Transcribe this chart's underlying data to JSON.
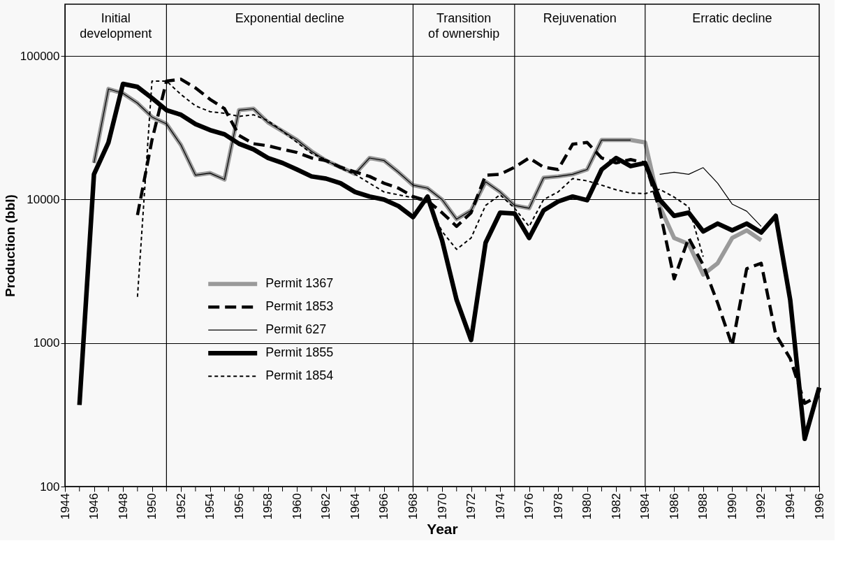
{
  "chart_data": {
    "type": "line",
    "xlabel": "Year",
    "ylabel": "Production (bbl)",
    "log": "y",
    "grid": "y",
    "legend": "bottom left",
    "x": [
      1945,
      1946,
      1947,
      1948,
      1949,
      1950,
      1951,
      1952,
      1953,
      1954,
      1955,
      1956,
      1957,
      1958,
      1959,
      1960,
      1961,
      1962,
      1963,
      1964,
      1965,
      1966,
      1967,
      1968,
      1969,
      1970,
      1971,
      1972,
      1973,
      1974,
      1975,
      1976,
      1977,
      1978,
      1979,
      1980,
      1981,
      1982,
      1983,
      1984,
      1985,
      1986,
      1987,
      1988,
      1989,
      1990,
      1991,
      1992,
      1993,
      1994,
      1995,
      1996
    ],
    "xlim": [
      1944,
      1996
    ],
    "xticks": [
      1944,
      {
        "value": 1945,
        "label": null
      },
      1946,
      {
        "value": 1947,
        "label": null
      },
      1948,
      {
        "value": 1949,
        "label": null
      },
      1950,
      {
        "value": 1951,
        "label": null
      },
      1952,
      {
        "value": 1953,
        "label": null
      },
      1954,
      {
        "value": 1955,
        "label": null
      },
      1956,
      {
        "value": 1957,
        "label": null
      },
      1958,
      {
        "value": 1959,
        "label": null
      },
      1960,
      {
        "value": 1961,
        "label": null
      },
      1962,
      {
        "value": 1963,
        "label": null
      },
      1964,
      {
        "value": 1965,
        "label": null
      },
      1966,
      {
        "value": 1967,
        "label": null
      },
      1968,
      {
        "value": 1969,
        "label": null
      },
      1970,
      {
        "value": 1971,
        "label": null
      },
      1972,
      {
        "value": 1973,
        "label": null
      },
      1974,
      {
        "value": 1975,
        "label": null
      },
      1976,
      {
        "value": 1977,
        "label": null
      },
      1978,
      {
        "value": 1979,
        "label": null
      },
      1980,
      {
        "value": 1981,
        "label": null
      },
      1982,
      {
        "value": 1983,
        "label": null
      },
      1984,
      {
        "value": 1985,
        "label": null
      },
      1986,
      {
        "value": 1987,
        "label": null
      },
      1988,
      {
        "value": 1989,
        "label": null
      },
      1990,
      {
        "value": 1991,
        "label": null
      },
      1992,
      {
        "value": 1993,
        "label": null
      },
      1994,
      {
        "value": 1995,
        "label": null
      },
      1996
    ],
    "ylim": [
      100,
      230000
    ],
    "yticks": [
      100,
      1000,
      10000,
      100000
    ],
    "ref_lines": [
      {
        "axis": "x",
        "value": 1951
      },
      {
        "axis": "x",
        "value": 1968
      },
      {
        "axis": "x",
        "value": 1975
      },
      {
        "axis": "x",
        "value": 1984
      }
    ],
    "annotations": [
      "Initial development",
      "Exponential decline",
      "Transition of ownership",
      "Rejuvenation",
      "Erratic decline"
    ],
    "series": [
      {
        "name": "Permit 1367",
        "color": "#9a9a9a",
        "line_style": "solid",
        "values": [
          null,
          18000,
          59000,
          55000,
          47000,
          37600,
          33700,
          24000,
          14800,
          15300,
          13800,
          42000,
          43000,
          34500,
          30000,
          26000,
          21700,
          18700,
          16800,
          15100,
          19500,
          18700,
          15500,
          12600,
          12000,
          10000,
          7300,
          8400,
          13300,
          11300,
          9100,
          8700,
          14200,
          14500,
          15000,
          16200,
          26000,
          26000,
          26000,
          25000,
          9000,
          5400,
          4900,
          3000,
          3600,
          5400,
          6100,
          5200,
          null,
          null,
          null,
          null
        ]
      },
      {
        "name": "Permit 1853",
        "color": "#000000",
        "line_style": "dashed",
        "values": [
          null,
          null,
          null,
          null,
          7800,
          26000,
          67000,
          69000,
          60000,
          50000,
          43000,
          28000,
          24500,
          23700,
          22400,
          21300,
          19500,
          18700,
          16800,
          15600,
          14500,
          13000,
          12000,
          10500,
          9800,
          8100,
          6500,
          8100,
          14800,
          15000,
          16800,
          19500,
          16800,
          16200,
          24300,
          25000,
          19500,
          18000,
          19000,
          18000,
          8500,
          2800,
          5400,
          3500,
          1900,
          960,
          3300,
          3600,
          1150,
          780,
          380,
          430
        ]
      },
      {
        "name": "Permit 627",
        "color": "#000000",
        "line_style": "solid",
        "values": [
          null,
          18000,
          59000,
          55000,
          47000,
          37600,
          33700,
          24000,
          14800,
          15300,
          13800,
          42000,
          43000,
          34500,
          30000,
          26000,
          21700,
          18700,
          16800,
          15100,
          19500,
          18700,
          15500,
          12600,
          12000,
          10000,
          7300,
          8400,
          13300,
          11300,
          9100,
          8700,
          14200,
          14500,
          15000,
          16200,
          26000,
          26000,
          26000,
          null,
          15000,
          15500,
          15000,
          16700,
          13000,
          9300,
          8300,
          6500,
          null,
          null,
          null,
          null
        ]
      },
      {
        "name": "Permit 1855",
        "color": "#000000",
        "line_style": "solid",
        "values": [
          370,
          15000,
          25000,
          64000,
          61000,
          51000,
          42000,
          39000,
          33600,
          30500,
          28500,
          24500,
          22400,
          19500,
          18000,
          16200,
          14500,
          14000,
          13000,
          11300,
          10500,
          10000,
          9000,
          7550,
          10500,
          5200,
          2000,
          1050,
          5000,
          8100,
          8000,
          5400,
          8400,
          9700,
          10500,
          9900,
          16200,
          19500,
          17100,
          18000,
          10000,
          7700,
          8100,
          6000,
          6800,
          6100,
          6800,
          5900,
          7700,
          2000,
          215,
          490
        ]
      },
      {
        "name": "Permit 1854",
        "color": "#000000",
        "line_style": "dotted",
        "values": [
          null,
          null,
          null,
          null,
          2100,
          67000,
          67000,
          54000,
          45000,
          41000,
          40000,
          38000,
          39000,
          35500,
          30000,
          25000,
          21000,
          19000,
          16500,
          15000,
          13000,
          11300,
          10800,
          10300,
          9500,
          6000,
          4500,
          5400,
          9100,
          10800,
          8700,
          6500,
          10000,
          11300,
          14000,
          13500,
          12600,
          11700,
          11100,
          11000,
          11800,
          10400,
          8900,
          4000,
          null,
          null,
          null,
          null,
          null,
          null,
          null,
          null
        ]
      }
    ]
  }
}
